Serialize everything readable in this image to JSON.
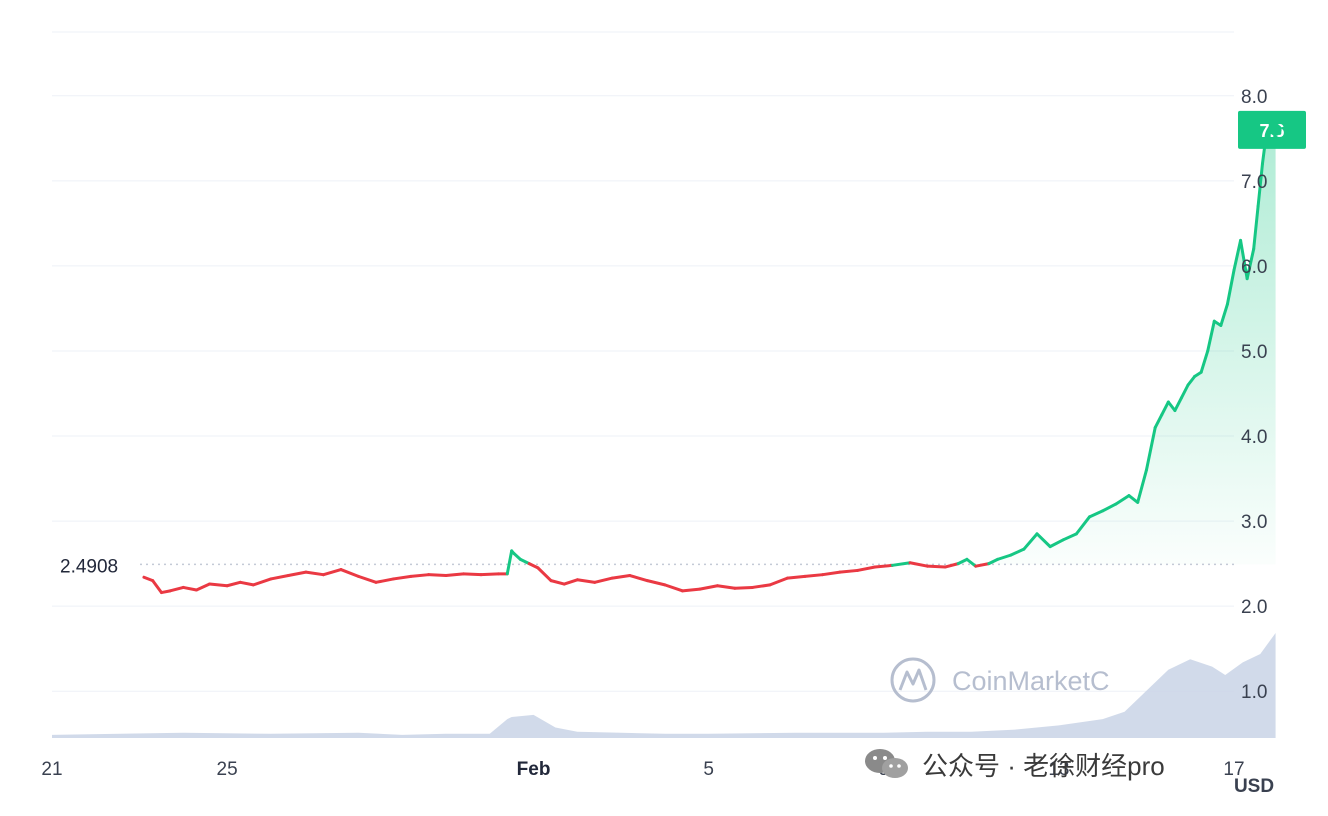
{
  "chart_data": {
    "type": "line",
    "reference_value": 2.4908,
    "reference_label": "2.4908",
    "current_value": 7.6,
    "current_label": "7.6",
    "y_ticks": [
      "8.0",
      "7.0",
      "6.0",
      "5.0",
      "4.0",
      "3.0",
      "2.0",
      "1.0"
    ],
    "y_tick_values": [
      8.0,
      7.0,
      6.0,
      5.0,
      4.0,
      3.0,
      2.0,
      1.0
    ],
    "ylim": [
      0.45,
      8.75
    ],
    "x_range": [
      21,
      48
    ],
    "x_ticks": [
      {
        "label": "21",
        "day": 21,
        "bold": false
      },
      {
        "label": "25",
        "day": 25,
        "bold": false
      },
      {
        "label": "Feb",
        "day": 32,
        "bold": true
      },
      {
        "label": "5",
        "day": 36,
        "bold": false
      },
      {
        "label": "9",
        "day": 40,
        "bold": false
      },
      {
        "label": "13",
        "day": 44,
        "bold": false
      },
      {
        "label": "17",
        "day": 48,
        "bold": false
      }
    ],
    "unit": "USD",
    "colors": {
      "up": "#16c784",
      "down": "#ea3943",
      "volume": "#c9d3e6",
      "grid": "#eef1f7",
      "reference": "#c4cad6"
    },
    "series": [
      {
        "x": [
          23.1,
          23.3,
          23.5,
          23.7,
          24.0,
          24.3,
          24.6,
          25.0,
          25.3,
          25.6,
          26.0,
          26.4,
          26.8,
          27.2,
          27.6,
          28.0,
          28.4,
          28.8,
          29.2,
          29.6,
          30.0,
          30.4,
          30.8,
          31.2,
          31.4,
          31.5,
          31.55,
          31.7,
          31.9,
          32.1,
          32.4,
          32.7,
          33.0,
          33.4,
          33.8,
          34.2,
          34.6,
          35.0,
          35.4,
          35.8,
          36.2,
          36.6,
          37.0,
          37.4,
          37.8,
          38.2,
          38.6,
          39.0,
          39.4,
          39.8,
          40.2,
          40.6,
          41.0,
          41.4,
          41.7,
          41.9,
          42.1,
          42.4,
          42.6,
          42.9,
          43.2,
          43.5,
          43.8,
          44.1,
          44.4,
          44.7,
          45.0,
          45.3,
          45.6,
          45.8,
          46.0,
          46.2,
          46.35,
          46.5,
          46.65,
          46.8,
          46.95,
          47.1,
          47.25,
          47.4,
          47.55,
          47.7,
          47.85,
          48.0,
          48.15,
          48.3,
          48.45,
          48.55,
          48.65,
          48.75,
          48.85,
          48.95
        ],
        "y": [
          2.34,
          2.3,
          2.16,
          2.18,
          2.22,
          2.19,
          2.26,
          2.24,
          2.28,
          2.25,
          2.32,
          2.36,
          2.4,
          2.37,
          2.43,
          2.35,
          2.28,
          2.32,
          2.35,
          2.37,
          2.36,
          2.38,
          2.37,
          2.38,
          2.38,
          2.65,
          2.62,
          2.55,
          2.5,
          2.45,
          2.3,
          2.26,
          2.31,
          2.28,
          2.33,
          2.36,
          2.3,
          2.25,
          2.18,
          2.2,
          2.24,
          2.21,
          2.22,
          2.25,
          2.33,
          2.35,
          2.37,
          2.4,
          2.42,
          2.46,
          2.48,
          2.51,
          2.47,
          2.46,
          2.5,
          2.55,
          2.47,
          2.5,
          2.55,
          2.6,
          2.67,
          2.85,
          2.7,
          2.78,
          2.85,
          3.05,
          3.12,
          3.2,
          3.3,
          3.22,
          3.6,
          4.1,
          4.25,
          4.4,
          4.3,
          4.45,
          4.6,
          4.7,
          4.75,
          5.0,
          5.35,
          5.3,
          5.55,
          5.95,
          6.3,
          5.85,
          6.2,
          6.7,
          7.2,
          7.6,
          7.75,
          7.6
        ]
      }
    ],
    "volume": {
      "x": [
        21,
        24,
        26,
        28,
        29,
        30,
        31,
        31.4,
        31.5,
        32,
        32.5,
        33,
        34,
        35,
        36,
        38,
        40,
        41,
        42,
        43,
        44,
        45,
        45.5,
        46,
        46.5,
        47,
        47.5,
        47.8,
        48.2,
        48.6,
        48.95
      ],
      "level": [
        0.03,
        0.05,
        0.04,
        0.05,
        0.03,
        0.04,
        0.04,
        0.18,
        0.2,
        0.22,
        0.1,
        0.06,
        0.05,
        0.04,
        0.04,
        0.05,
        0.05,
        0.06,
        0.06,
        0.08,
        0.12,
        0.18,
        0.25,
        0.45,
        0.65,
        0.75,
        0.68,
        0.6,
        0.72,
        0.8,
        1.0
      ]
    }
  },
  "watermark": {
    "text": "CoinMarketC"
  },
  "footer": {
    "label": "公众号 · 老徐财经pro",
    "icon": "wechat-icon"
  }
}
